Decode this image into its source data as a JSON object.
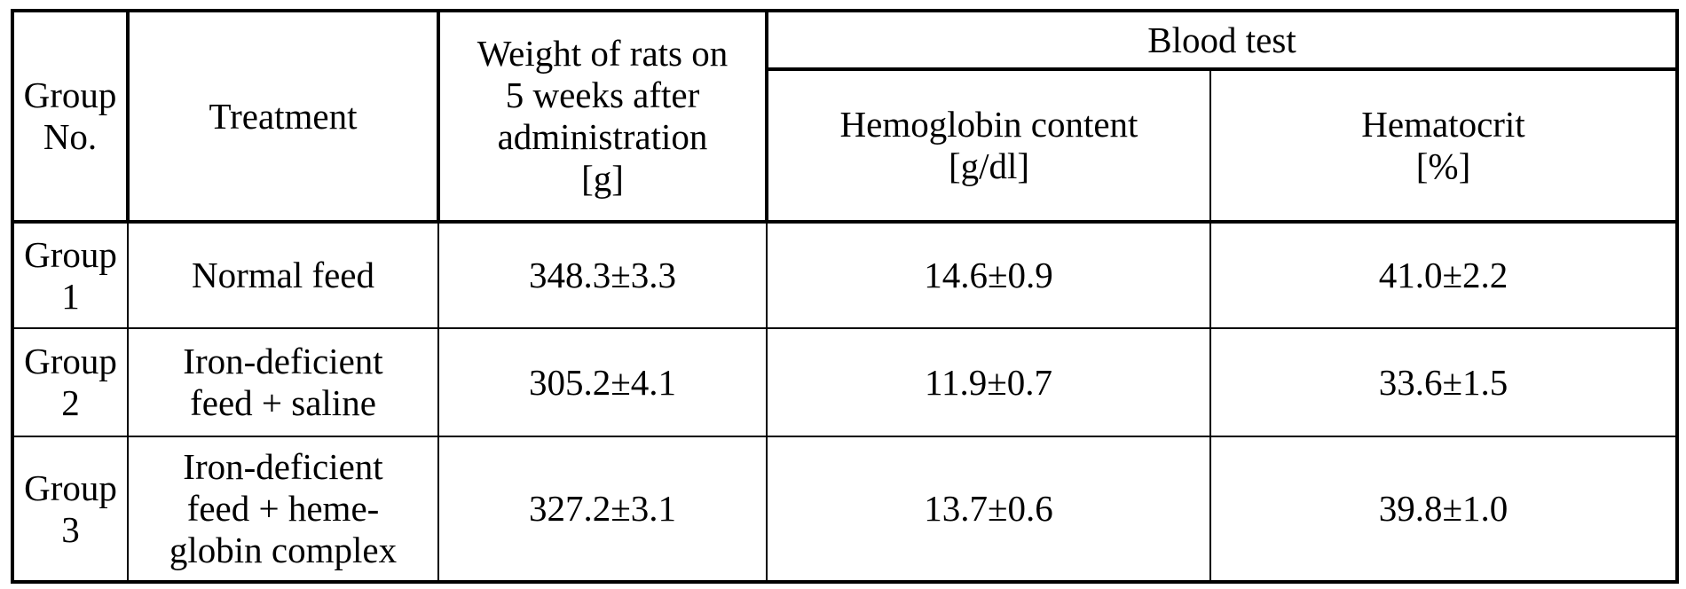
{
  "table": {
    "headers": {
      "group_no": [
        "Group",
        "No."
      ],
      "treatment": "Treatment",
      "weight": [
        "Weight of rats on",
        "5 weeks after",
        "administration",
        "[g]"
      ],
      "blood_test": "Blood test",
      "hemoglobin": [
        "Hemoglobin content",
        "[g/dl]"
      ],
      "hematocrit": [
        "Hematocrit",
        "[%]"
      ]
    },
    "rows": [
      {
        "group": [
          "Group",
          "1"
        ],
        "treatment": [
          "Normal feed"
        ],
        "weight": "348.3±3.3",
        "hemoglobin": "14.6±0.9",
        "hematocrit": "41.0±2.2"
      },
      {
        "group": [
          "Group",
          "2"
        ],
        "treatment": [
          "Iron-deficient",
          "feed + saline"
        ],
        "weight": "305.2±4.1",
        "hemoglobin": "11.9±0.7",
        "hematocrit": "33.6±1.5"
      },
      {
        "group": [
          "Group",
          "3"
        ],
        "treatment": [
          "Iron-deficient",
          "feed + heme-",
          "globin complex"
        ],
        "weight": "327.2±3.1",
        "hemoglobin": "13.7±0.6",
        "hematocrit": "39.8±1.0"
      }
    ]
  }
}
